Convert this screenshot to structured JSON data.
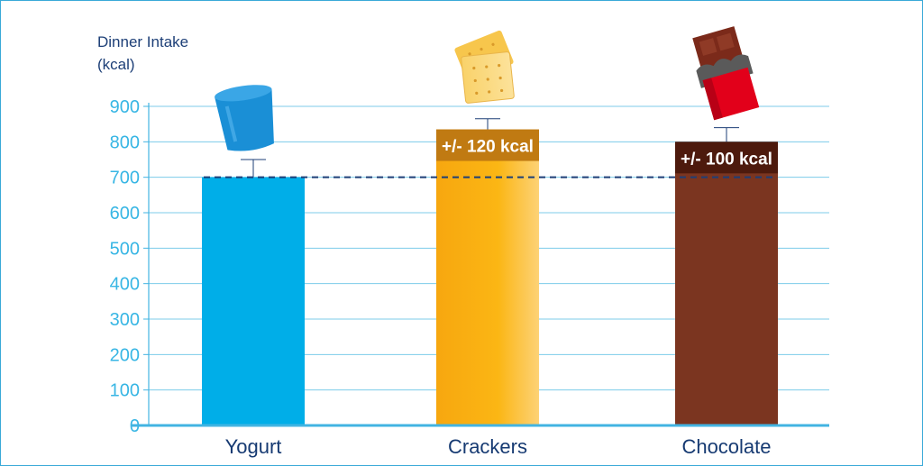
{
  "chart_data": {
    "type": "bar",
    "ylabel_line1": "Dinner Intake",
    "ylabel_line2": "(kcal)",
    "ylim": [
      0,
      900
    ],
    "yticks": [
      0,
      100,
      200,
      300,
      400,
      500,
      600,
      700,
      800,
      900
    ],
    "grid": true,
    "categories": [
      "Yogurt",
      "Crackers",
      "Chocolate"
    ],
    "values": [
      700,
      835,
      800
    ],
    "error_upper": [
      750,
      865,
      840
    ],
    "bar_colors": [
      "#00aee8",
      "#fbb614",
      "#7b3520"
    ],
    "reference_line": 700,
    "annotations": [
      {
        "category": "Crackers",
        "text": "+/- 120 kcal"
      },
      {
        "category": "Chocolate",
        "text": "+/- 100 kcal"
      }
    ],
    "colors": {
      "axis": "#42b4e2",
      "grid": "#7ccbea",
      "tick_label": "#38b6e4",
      "category_label": "#163a72",
      "reference_line": "#1d3f77",
      "crackers_label_bg": "#c07a12",
      "chocolate_label_bg": "#4d1a0d"
    }
  }
}
